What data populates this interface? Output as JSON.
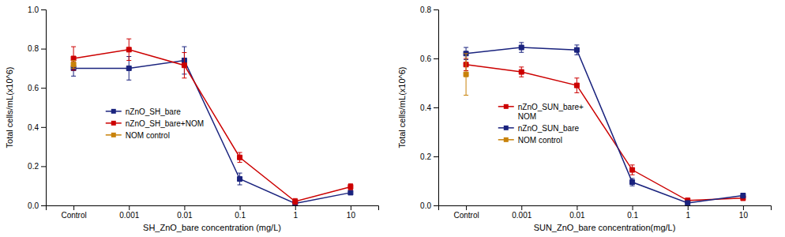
{
  "chart_data": [
    {
      "type": "line",
      "xlabel": "SH_ZnO_bare concentration (mg/L)",
      "ylabel": "Total cells/mL(x10^6)",
      "categories": [
        "Control",
        "0.001",
        "0.01",
        "0.1",
        "1",
        "10"
      ],
      "ylim": [
        0,
        1.0
      ],
      "yticks": [
        {
          "value": 0.0,
          "label": "0.0"
        },
        0.2,
        0.4,
        0.6,
        0.8,
        {
          "value": 1.0,
          "label": "1.0"
        }
      ],
      "legend": "left",
      "series": [
        {
          "name": "nZnO_SH_bare",
          "color": "#1a237e",
          "marker": "square",
          "line_style": "solid",
          "values": [
            0.7,
            0.7,
            0.74,
            0.135,
            0.01,
            0.065
          ],
          "errors": [
            0.04,
            0.06,
            0.07,
            0.03,
            0.01,
            0.01
          ]
        },
        {
          "name": "nZnO_SH_bare+NOM",
          "color": "#cc0000",
          "marker": "square",
          "line_style": "solid",
          "values": [
            0.75,
            0.795,
            0.715,
            0.245,
            0.02,
            0.095
          ],
          "errors": [
            0.06,
            0.055,
            0.065,
            0.025,
            0.015,
            0.015
          ]
        },
        {
          "name": "NOM control",
          "color": "#c8820a",
          "marker": "square",
          "line_style": "solid",
          "values": [
            0.72,
            null,
            null,
            null,
            null,
            null
          ],
          "errors": [
            0.02,
            null,
            null,
            null,
            null,
            null
          ]
        }
      ]
    },
    {
      "type": "line",
      "xlabel": "SUN_ZnO_bare concentration(mg/L)",
      "ylabel": "Total cells/mL(x10^6)",
      "categories": [
        "Control",
        "0.001",
        "0.01",
        "0.1",
        "1",
        "10"
      ],
      "ylim": [
        0,
        0.8
      ],
      "yticks": [
        {
          "value": 0.0,
          "label": "0.0"
        },
        0.2,
        0.4,
        0.6,
        0.8
      ],
      "legend": "left",
      "series": [
        {
          "name": "nZnO_SUN_bare+\nNOM",
          "color": "#cc0000",
          "marker": "square",
          "line_style": "solid",
          "values": [
            0.575,
            0.545,
            0.49,
            0.145,
            0.02,
            0.03
          ],
          "errors": [
            0.025,
            0.02,
            0.03,
            0.02,
            0.01,
            0.01
          ]
        },
        {
          "name": "nZnO_SUN_bare",
          "color": "#1a237e",
          "marker": "square",
          "line_style": "solid",
          "values": [
            0.62,
            0.645,
            0.635,
            0.095,
            0.01,
            0.04
          ],
          "errors": [
            0.025,
            0.02,
            0.02,
            0.015,
            0.005,
            0.01
          ]
        },
        {
          "name": "NOM control",
          "color": "#c8820a",
          "marker": "square",
          "line_style": "solid",
          "values": [
            0.535,
            null,
            null,
            null,
            null,
            null
          ],
          "errors": [
            0.085,
            null,
            null,
            null,
            null,
            null
          ]
        }
      ]
    }
  ]
}
